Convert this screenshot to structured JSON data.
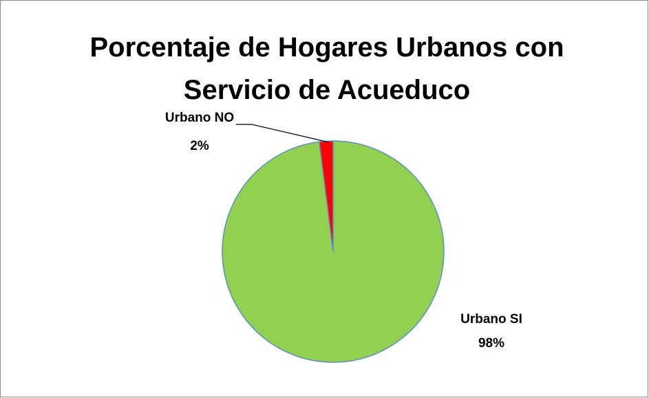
{
  "chart_data": {
    "type": "pie",
    "title": "Porcentaje de Hogares Urbanos con Servicio de Acueduco",
    "categories": [
      "Urbano SI",
      "Urbano NO"
    ],
    "values": [
      98,
      2
    ],
    "value_labels": [
      "98%",
      "2%"
    ],
    "colors": [
      "#92d050",
      "#ff0000"
    ]
  }
}
